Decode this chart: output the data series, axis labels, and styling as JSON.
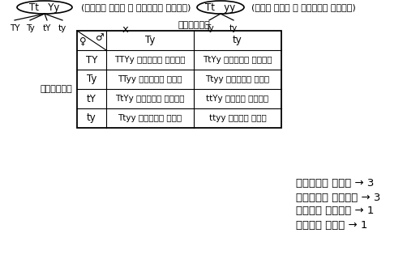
{
  "bg_color": "#ffffff",
  "title_parent1_oval": "Tt   Yy",
  "title_parent1_desc": "(पीले बीज व लम्बे पौधे)",
  "title_parent2_oval": "Tt   yy",
  "title_parent2_desc": "(हरे बीज व लम्बे पौधे)",
  "parent1_gametes": [
    "TY",
    "Ty",
    "tY",
    "ty"
  ],
  "parent2_gametes": [
    "Ty",
    "ty"
  ],
  "cross_symbol": "x",
  "yugmak_label": "युग्मक",
  "col_headers": [
    "Ty",
    "ty"
  ],
  "row_headers": [
    "TY",
    "Ty",
    "tY",
    "ty"
  ],
  "cells": [
    [
      "TTYy लम्बा पीला",
      "TtYy लम्बा पीला"
    ],
    [
      "TTyy लम्बा हरा",
      "Ttyy लम्बा हरा"
    ],
    [
      "TtYy लम्बा पीला",
      "ttYy बौना पीला"
    ],
    [
      "Ttyy लम्बा हरा",
      "ttyy बौना हरा"
    ]
  ],
  "results": [
    "लम्बा हरा → 3",
    "लम्बा पीला → 3",
    "बौना पीला → 1",
    "बौना हरा → 1"
  ],
  "font_size_header": 8.5,
  "font_size_cell": 7.5,
  "font_size_result": 9.5
}
